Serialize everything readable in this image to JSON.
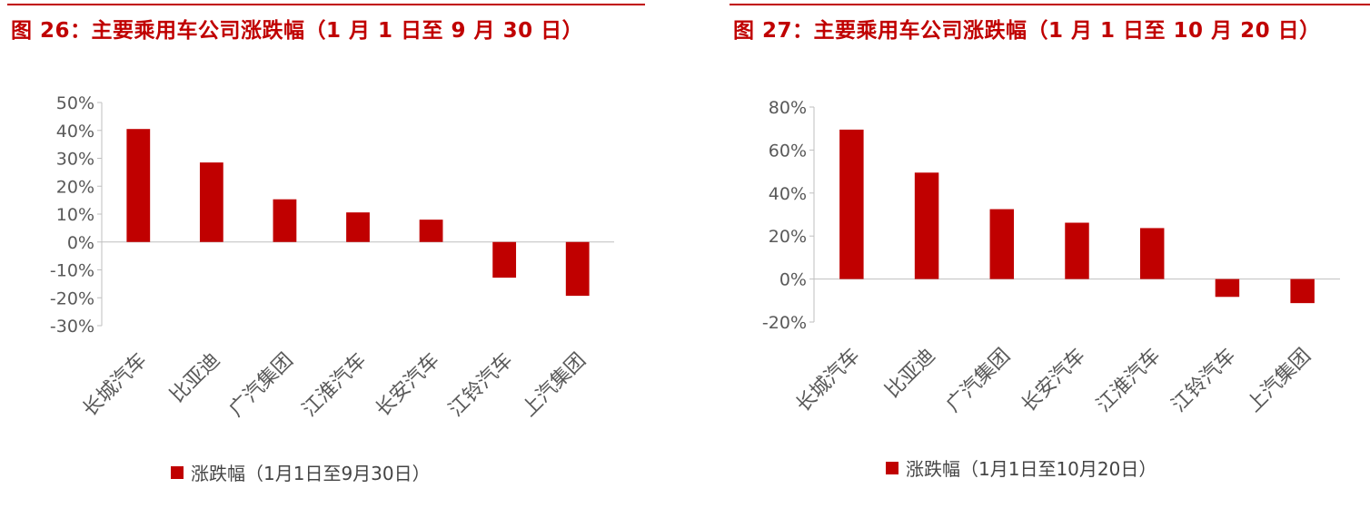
{
  "colors": {
    "accent": "#c00000",
    "bar": "#c00000",
    "axis": "#bfbfbf",
    "text": "#595959"
  },
  "chart_data": [
    {
      "type": "bar",
      "title": "图 26：主要乘用车公司涨跌幅（1 月 1 日至 9 月 30 日）",
      "categories": [
        "长城汽车",
        "比亚迪",
        "广汽集团",
        "江淮汽车",
        "长安汽车",
        "江铃汽车",
        "上汽集团"
      ],
      "series": [
        {
          "name": "涨跌幅（1月1日至9月30日）",
          "values": [
            40.5,
            28.5,
            15.3,
            10.6,
            8.0,
            -12.8,
            -19.3
          ]
        }
      ],
      "ylim": [
        -30,
        50
      ],
      "yticks": [
        50,
        40,
        30,
        20,
        10,
        0,
        -10,
        -20,
        -30
      ],
      "ytick_labels": [
        "50%",
        "40%",
        "30%",
        "20%",
        "10%",
        "0%",
        "-10%",
        "-20%",
        "-30%"
      ],
      "grid": false,
      "legend_position": "bottom"
    },
    {
      "type": "bar",
      "title": "图 27：主要乘用车公司涨跌幅（1 月 1 日至 10 月 20 日）",
      "categories": [
        "长城汽车",
        "比亚迪",
        "广汽集团",
        "长安汽车",
        "江淮汽车",
        "江铃汽车",
        "上汽集团"
      ],
      "series": [
        {
          "name": "涨跌幅（1月1日至10月20日）",
          "values": [
            69.5,
            49.5,
            32.5,
            26.2,
            23.7,
            -8.3,
            -11.2
          ]
        }
      ],
      "ylim": [
        -20,
        80
      ],
      "yticks": [
        80,
        60,
        40,
        20,
        0,
        -20
      ],
      "ytick_labels": [
        "80%",
        "60%",
        "40%",
        "20%",
        "0%",
        "-20%"
      ],
      "grid": false,
      "legend_position": "bottom"
    }
  ]
}
